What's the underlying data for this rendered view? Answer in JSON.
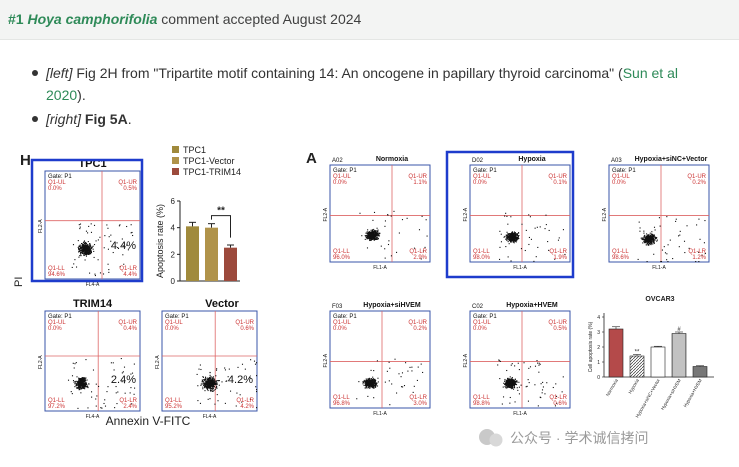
{
  "header": {
    "number": "#1",
    "species": "Hoya camphorifolia",
    "rest": "comment accepted August 2024"
  },
  "bullets": [
    {
      "tag": "[left]",
      "text_before": "Fig 2H from \"Tripartite motif containing 14: An oncogene in papillary thyroid carcinoma\" (",
      "link_part1": "Sun et al",
      "link_part2": "2020",
      "text_after": ")."
    },
    {
      "tag": "[right]",
      "bold": "Fig 5A",
      "text_after": "."
    }
  ],
  "left_figure": {
    "panel_letter": "H",
    "y_axis_label": "PI",
    "x_axis_label": "Annexin V-FITC",
    "plots": [
      {
        "title": "TPC1",
        "gate": "Gate: P1",
        "ul": "Q1-UL",
        "ul_val": "0.0%",
        "ur": "Q1-UR",
        "ur_val": "0.5%",
        "ll": "Q1-LL",
        "ll_val": "94.6%",
        "lr": "Q1-LR",
        "lr_val": "4.4%",
        "big": "4.4%",
        "fl2": "FL2-A",
        "fl4": "FL4-A"
      },
      {
        "title": "TRIM14",
        "gate": "Gate: P1",
        "ul": "Q1-UL",
        "ul_val": "0.0%",
        "ur": "Q1-UR",
        "ur_val": "0.4%",
        "ll": "Q1-LL",
        "ll_val": "97.2%",
        "lr": "Q1-LR",
        "lr_val": "2.4%",
        "big": "2.4%",
        "fl2": "FL2-A",
        "fl4": "FL4-A"
      },
      {
        "title": "Vector",
        "gate": "Gate: P1",
        "ul": "Q1-UL",
        "ul_val": "0.0%",
        "ur": "Q1-UR",
        "ur_val": "0.6%",
        "ll": "Q1-LL",
        "ll_val": "95.2%",
        "lr": "Q1-LR",
        "lr_val": "4.2%",
        "big": "4.2%",
        "fl2": "FL2-A",
        "fl4": "FL4-A"
      }
    ],
    "bar_chart": {
      "type": "bar",
      "ylabel": "Apoptosis rate (%)",
      "ylim": [
        0,
        6
      ],
      "yticks": [
        0,
        2,
        4,
        6
      ],
      "series": [
        {
          "name": "TPC1",
          "value": 4.1,
          "error": 0.3,
          "color": "#a08a3c"
        },
        {
          "name": "TPC1-Vector",
          "value": 4.0,
          "error": 0.3,
          "color": "#b0934a"
        },
        {
          "name": "TPC1-TRIM14",
          "value": 2.5,
          "error": 0.2,
          "color": "#9c4a3c"
        }
      ],
      "significance": "**"
    }
  },
  "right_figure": {
    "panel_letter": "A",
    "plots": [
      {
        "id": "A02",
        "title": "Normoxia",
        "gate": "Gate: P1",
        "ul": "Q1-UL",
        "ul_val": "0.0%",
        "ur": "Q1-UR",
        "ur_val": "1.1%",
        "ll": "Q1-LL",
        "ll_val": "96.0%",
        "lr": "Q1-LR",
        "lr_val": "2.9%",
        "fl2": "FL2-A",
        "fl1": "FL1-A"
      },
      {
        "id": "D02",
        "title": "Hypoxia",
        "gate": "Gate: P1",
        "ul": "Q1-UL",
        "ul_val": "0.0%",
        "ur": "Q1-UR",
        "ur_val": "0.1%",
        "ll": "Q1-LL",
        "ll_val": "98.0%",
        "lr": "Q1-LR",
        "lr_val": "1.9%",
        "fl2": "FL2-A",
        "fl1": "FL1-A"
      },
      {
        "id": "A03",
        "title": "Hypoxia+siNC+Vector",
        "gate": "Gate: P1",
        "ul": "Q1-UL",
        "ul_val": "0.0%",
        "ur": "Q1-UR",
        "ur_val": "0.2%",
        "ll": "Q1-LL",
        "ll_val": "98.6%",
        "lr": "Q1-LR",
        "lr_val": "1.2%",
        "fl2": "FL2-A",
        "fl1": "FL1-A"
      },
      {
        "id": "F03",
        "title": "Hypoxia+siHVEM",
        "gate": "Gate: P1",
        "ul": "Q1-UL",
        "ul_val": "0.0%",
        "ur": "Q1-UR",
        "ur_val": "0.2%",
        "ll": "Q1-LL",
        "ll_val": "96.8%",
        "lr": "Q1-LR",
        "lr_val": "3.0%",
        "fl2": "FL2-A",
        "fl1": "FL1-A"
      },
      {
        "id": "C02",
        "title": "Hypoxia+HVEM",
        "gate": "Gate: P1",
        "ul": "Q1-UL",
        "ul_val": "0.0%",
        "ur": "Q1-UR",
        "ur_val": "0.5%",
        "ll": "Q1-LL",
        "ll_val": "98.8%",
        "lr": "Q1-LR",
        "lr_val": "0.6%",
        "fl2": "FL2-A",
        "fl1": "FL1-A"
      }
    ],
    "bar_chart": {
      "type": "bar",
      "title": "OVCAR3",
      "ylabel": "Cell apoptosis rate (%)",
      "ylim": [
        0,
        4
      ],
      "yticks": [
        0,
        1,
        2,
        3,
        4
      ],
      "categories": [
        "Normoxia",
        "Hypoxia",
        "Hypoxia+siNC+Vector",
        "Hypoxia+siHVEM",
        "Hypoxia+HVEM"
      ],
      "values": [
        3.2,
        1.4,
        2.0,
        2.9,
        0.7
      ],
      "errors": [
        0.15,
        0.1,
        0.05,
        0.1,
        0.05
      ],
      "marks": [
        "",
        "**",
        "",
        "#",
        ""
      ]
    }
  },
  "watermark": "公众号 · 学术诚信拷问"
}
